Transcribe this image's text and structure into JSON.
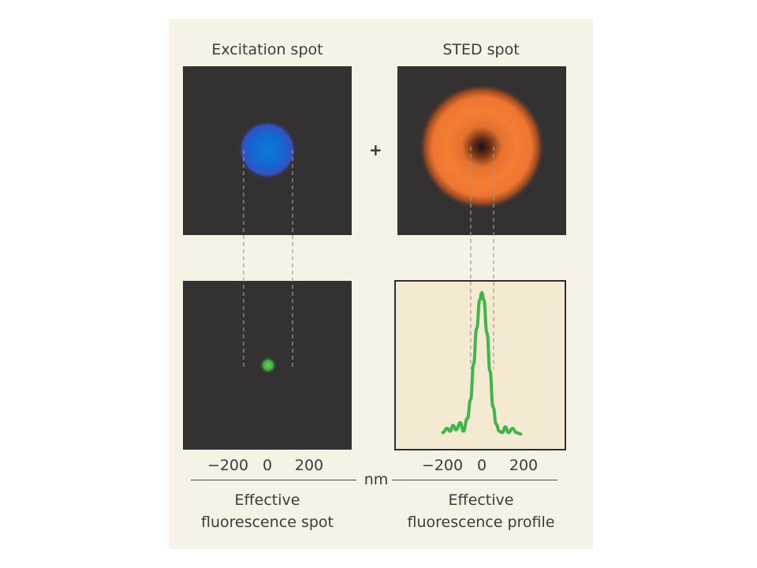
{
  "titles": {
    "left": "Excitation spot",
    "right": "STED spot"
  },
  "plus_sign": "+",
  "axis": {
    "ticks": [
      "−200",
      "0",
      "200"
    ],
    "unit": "nm"
  },
  "captions": {
    "left": [
      "Effective",
      "fluorescence spot"
    ],
    "right": [
      "Effective",
      "fluorescence profile"
    ]
  },
  "colors": {
    "panel_background": "#f7f2e6",
    "image_background": "#333132",
    "excitation_blue": "#1f6fd0",
    "sted_orange": "#f07a30",
    "fluorescence_green": "#3fb54a",
    "profile_background": "#f4ead2"
  },
  "chart_data": {
    "type": "line",
    "x_unit": "nm",
    "x_ticks": [
      -200,
      0,
      200
    ],
    "x": [
      -190,
      -170,
      -155,
      -140,
      -125,
      -105,
      -90,
      -70,
      -55,
      -40,
      -25,
      -10,
      0,
      10,
      25,
      40,
      55,
      70,
      85,
      100,
      115,
      130,
      150,
      170,
      190
    ],
    "values": [
      0.02,
      0.05,
      0.03,
      0.07,
      0.04,
      0.09,
      0.03,
      0.12,
      0.25,
      0.5,
      0.75,
      0.95,
      1.0,
      0.95,
      0.72,
      0.45,
      0.2,
      0.08,
      0.03,
      0.02,
      0.06,
      0.02,
      0.05,
      0.02,
      0.01
    ],
    "ylim": [
      0,
      1.05
    ],
    "grid": false
  }
}
